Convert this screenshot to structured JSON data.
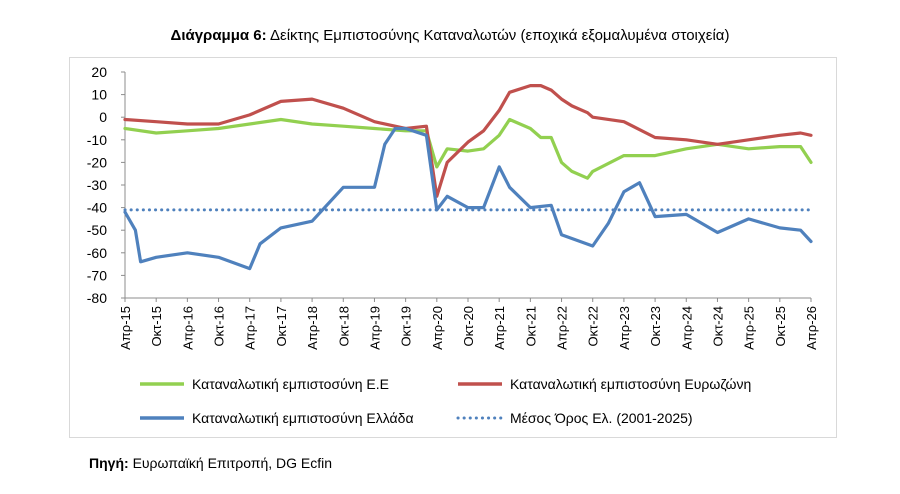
{
  "title": {
    "bold": "Διάγραμμα 6:",
    "rest": "Δείκτης Εμπιστοσύνης Καταναλωτών (εποχικά εξομαλυμένα στοιχεία)"
  },
  "source": {
    "bold": "Πηγή:",
    "rest": "Ευρωπαϊκή Επιτροπή, DG Ecfin"
  },
  "chart_data": {
    "type": "line",
    "ylim": [
      -80,
      20
    ],
    "yticks": [
      20,
      10,
      0,
      -10,
      -20,
      -30,
      -40,
      -50,
      -60,
      -70,
      -80
    ],
    "x_range": [
      "Απρ-15",
      "Απρ-26"
    ],
    "x_labels": [
      "Απρ-15",
      "Οκτ-15",
      "Απρ-16",
      "Οκτ-16",
      "Απρ-17",
      "Οκτ-17",
      "Απρ-18",
      "Οκτ-18",
      "Απρ-19",
      "Οκτ-19",
      "Απρ-20",
      "Οκτ-20",
      "Απρ-21",
      "Οκτ-21",
      "Απρ-22",
      "Οκτ-22",
      "Απρ-23",
      "Οκτ-23",
      "Απρ-24",
      "Οκτ-24",
      "Απρ-25",
      "Οκτ-25",
      "Απρ-26"
    ],
    "grid": false,
    "legend": "bottom",
    "series": [
      {
        "name": "Καταναλωτική εμπιστοσύνη Ε.Ε",
        "color": "#92d050",
        "style": "solid",
        "values": [
          [
            "Απρ-15",
            -5
          ],
          [
            "Οκτ-15",
            -7
          ],
          [
            "Απρ-16",
            -6
          ],
          [
            "Οκτ-16",
            -5
          ],
          [
            "Απρ-17",
            -3
          ],
          [
            "Οκτ-17",
            -1
          ],
          [
            "Απρ-18",
            -3
          ],
          [
            "Οκτ-18",
            -4
          ],
          [
            "Απρ-19",
            -5
          ],
          [
            "Οκτ-19",
            -6
          ],
          [
            "Φεβ-20",
            -6
          ],
          [
            "Απρ-20",
            -22
          ],
          [
            "Ιουν-20",
            -14
          ],
          [
            "Οκτ-20",
            -15
          ],
          [
            "Ιαν-21",
            -14
          ],
          [
            "Απρ-21",
            -8
          ],
          [
            "Ιουν-21",
            -1
          ],
          [
            "Οκτ-21",
            -5
          ],
          [
            "Δεκ-21",
            -9
          ],
          [
            "Φεβ-22",
            -9
          ],
          [
            "Απρ-22",
            -20
          ],
          [
            "Ιουν-22",
            -24
          ],
          [
            "Σεπ-22",
            -27
          ],
          [
            "Οκτ-22",
            -24
          ],
          [
            "Απρ-23",
            -17
          ],
          [
            "Οκτ-23",
            -17
          ],
          [
            "Απρ-24",
            -14
          ],
          [
            "Οκτ-24",
            -12
          ],
          [
            "Απρ-25",
            -14
          ],
          [
            "Οκτ-25",
            -13
          ],
          [
            "Φεβ-26",
            -13
          ],
          [
            "Απρ-26",
            -20
          ]
        ]
      },
      {
        "name": "Καταναλωτική εμπιστοσύνη Ευρωζώνη",
        "color": "#c0504d",
        "style": "solid",
        "values": [
          [
            "Απρ-15",
            -1
          ],
          [
            "Οκτ-15",
            -2
          ],
          [
            "Απρ-16",
            -3
          ],
          [
            "Οκτ-16",
            -3
          ],
          [
            "Απρ-17",
            1
          ],
          [
            "Οκτ-17",
            7
          ],
          [
            "Απρ-18",
            8
          ],
          [
            "Οκτ-18",
            4
          ],
          [
            "Απρ-19",
            -2
          ],
          [
            "Οκτ-19",
            -5
          ],
          [
            "Φεβ-20",
            -4
          ],
          [
            "Απρ-20",
            -35
          ],
          [
            "Ιουν-20",
            -20
          ],
          [
            "Οκτ-20",
            -11
          ],
          [
            "Ιαν-21",
            -6
          ],
          [
            "Απρ-21",
            3
          ],
          [
            "Ιουν-21",
            11
          ],
          [
            "Οκτ-21",
            14
          ],
          [
            "Δεκ-21",
            14
          ],
          [
            "Φεβ-22",
            12
          ],
          [
            "Απρ-22",
            8
          ],
          [
            "Ιουν-22",
            5
          ],
          [
            "Σεπ-22",
            2
          ],
          [
            "Οκτ-22",
            0
          ],
          [
            "Απρ-23",
            -2
          ],
          [
            "Οκτ-23",
            -9
          ],
          [
            "Απρ-24",
            -10
          ],
          [
            "Οκτ-24",
            -12
          ],
          [
            "Απρ-25",
            -10
          ],
          [
            "Οκτ-25",
            -8
          ],
          [
            "Φεβ-26",
            -7
          ],
          [
            "Απρ-26",
            -8
          ]
        ]
      },
      {
        "name": "Καταναλωτική εμπιστοσύνη Ελλάδα",
        "color": "#4f81bd",
        "style": "solid",
        "values": [
          [
            "Απρ-15",
            -42
          ],
          [
            "Ιουν-15",
            -50
          ],
          [
            "Ιουλ-15",
            -64
          ],
          [
            "Οκτ-15",
            -62
          ],
          [
            "Απρ-16",
            -60
          ],
          [
            "Οκτ-16",
            -62
          ],
          [
            "Απρ-17",
            -67
          ],
          [
            "Ιουν-17",
            -56
          ],
          [
            "Οκτ-17",
            -49
          ],
          [
            "Απρ-18",
            -46
          ],
          [
            "Οκτ-18",
            -31
          ],
          [
            "Απρ-19",
            -31
          ],
          [
            "Ιουν-19",
            -12
          ],
          [
            "Αυγ-19",
            -5
          ],
          [
            "Οκτ-19",
            -5
          ],
          [
            "Φεβ-20",
            -8
          ],
          [
            "Απρ-20",
            -41
          ],
          [
            "Ιουν-20",
            -35
          ],
          [
            "Οκτ-20",
            -40
          ],
          [
            "Ιαν-21",
            -40
          ],
          [
            "Απρ-21",
            -22
          ],
          [
            "Ιουν-21",
            -31
          ],
          [
            "Οκτ-21",
            -40
          ],
          [
            "Φεβ-22",
            -39
          ],
          [
            "Απρ-22",
            -52
          ],
          [
            "Οκτ-22",
            -57
          ],
          [
            "Ιαν-23",
            -47
          ],
          [
            "Απρ-23",
            -33
          ],
          [
            "Ιουλ-23",
            -29
          ],
          [
            "Οκτ-23",
            -44
          ],
          [
            "Απρ-24",
            -43
          ],
          [
            "Οκτ-24",
            -51
          ],
          [
            "Απρ-25",
            -45
          ],
          [
            "Οκτ-25",
            -49
          ],
          [
            "Φεβ-26",
            -50
          ],
          [
            "Απρ-26",
            -55
          ]
        ]
      },
      {
        "name": "Μέσος Όρος Ελ. (2001-2025)",
        "color": "#4f81bd",
        "style": "dotted",
        "values": [
          [
            "Απρ-15",
            -41
          ],
          [
            "Απρ-26",
            -41
          ]
        ]
      }
    ]
  }
}
